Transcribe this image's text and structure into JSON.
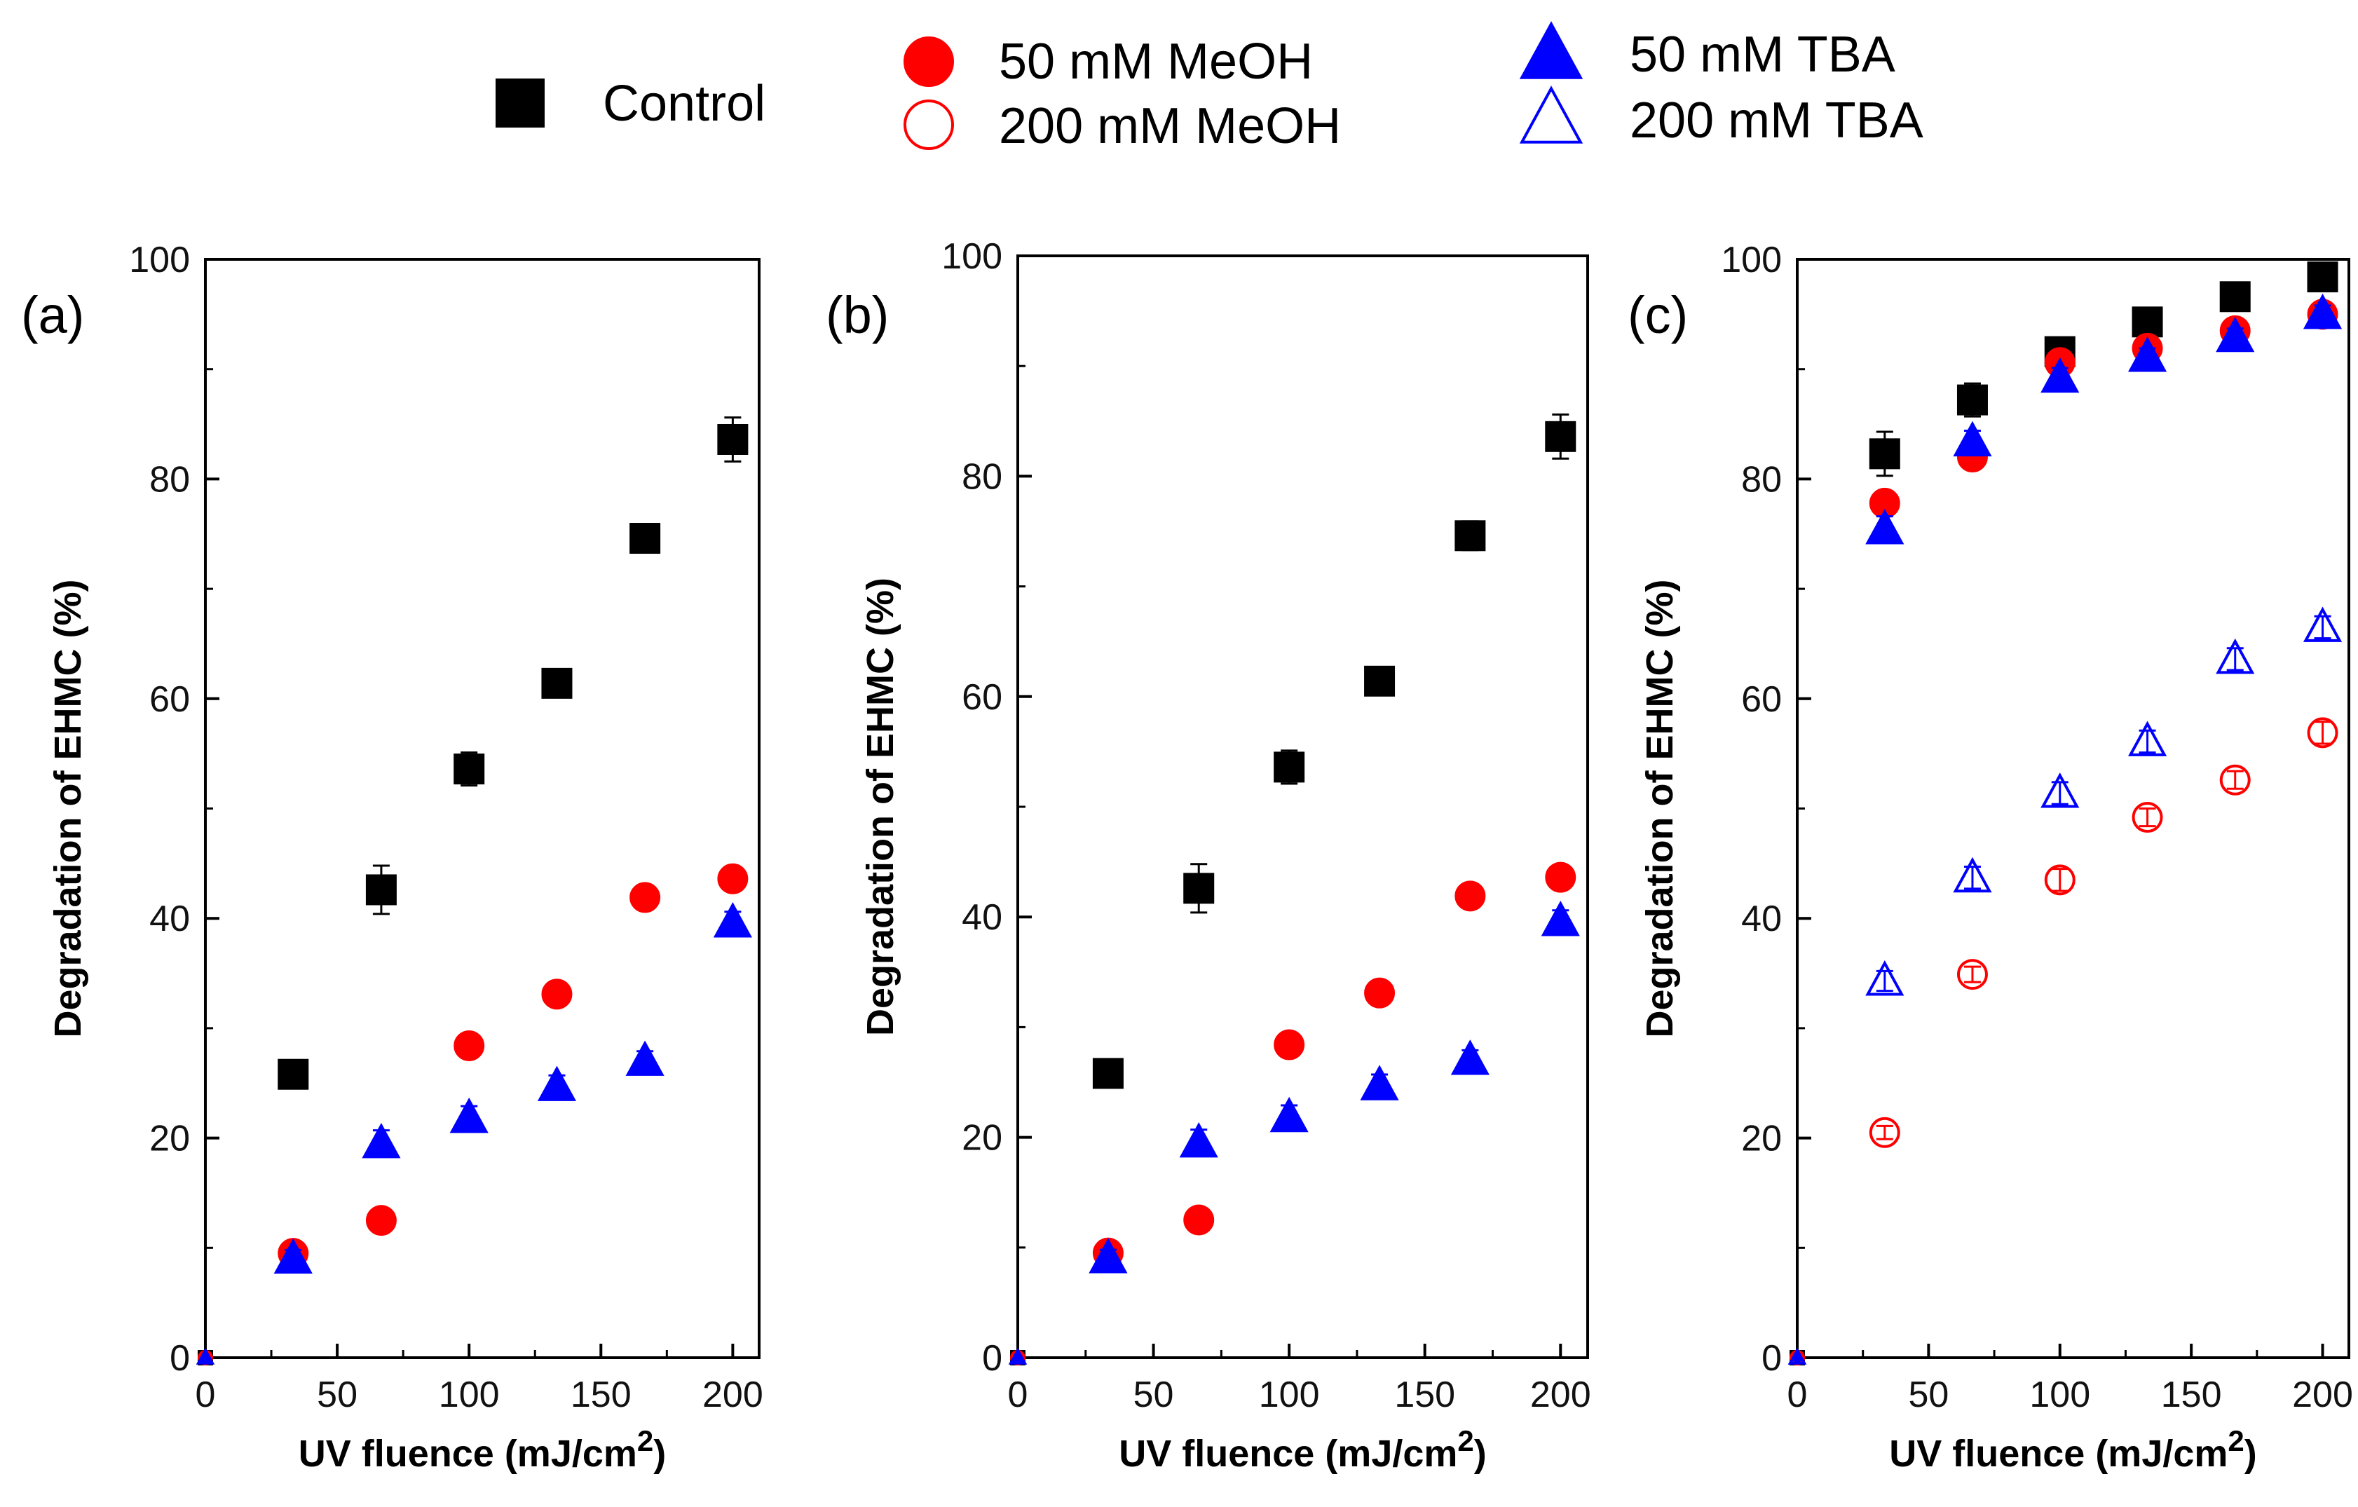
{
  "chart_data": [
    {
      "type": "scatter",
      "panel_label": "(a)",
      "xlabel": "UV fluence (mJ/cm",
      "xlabel_sup": "2",
      "xlabel_close": ")",
      "ylabel": "Degradation of EHMC (%)",
      "xlim": [
        0,
        210
      ],
      "ylim": [
        0,
        100
      ],
      "xticks": [
        0,
        50,
        100,
        150,
        200
      ],
      "yticks": [
        0,
        20,
        40,
        60,
        80,
        100
      ],
      "xtick_labels": [
        "0",
        "50",
        "100",
        "150",
        "200"
      ],
      "ytick_labels": [
        "0",
        "20",
        "40",
        "60",
        "80",
        "100"
      ],
      "series": [
        {
          "name": "Control",
          "marker": "square",
          "filled": true,
          "color": "#000000",
          "x": [
            0,
            33.3,
            66.7,
            100,
            133.3,
            166.7,
            200
          ],
          "y": [
            0,
            25.8,
            42.6,
            53.6,
            61.4,
            74.6,
            83.6
          ],
          "err": [
            0,
            1.2,
            2.2,
            1.5,
            1.1,
            1.3,
            2.0
          ]
        },
        {
          "name": "50 mM MeOH",
          "marker": "circle",
          "filled": true,
          "color": "#ff0000",
          "x": [
            0,
            33.3,
            66.7,
            100,
            133.3,
            166.7,
            200
          ],
          "y": [
            0,
            9.5,
            12.5,
            28.4,
            33.1,
            41.9,
            43.6
          ],
          "err": [
            0,
            0.5,
            0.5,
            0.6,
            0.6,
            0.6,
            0.6
          ]
        },
        {
          "name": "50 mM TBA",
          "marker": "triangle",
          "filled": true,
          "color": "#0000ff",
          "x": [
            0,
            33.3,
            66.7,
            100,
            133.3,
            166.7,
            200
          ],
          "y": [
            0,
            9.0,
            19.5,
            21.8,
            24.7,
            27.0,
            39.6
          ],
          "err": [
            0,
            0.8,
            1.2,
            1.1,
            1.0,
            0.9,
            1.0
          ]
        }
      ]
    },
    {
      "type": "scatter",
      "panel_label": "(b)",
      "xlabel": "UV fluence (mJ/cm",
      "xlabel_sup": "2",
      "xlabel_close": ")",
      "ylabel": "Degradation of EHMC (%)",
      "xlim": [
        0,
        210
      ],
      "ylim": [
        0,
        100
      ],
      "xticks": [
        0,
        50,
        100,
        150,
        200
      ],
      "yticks": [
        0,
        20,
        40,
        60,
        80,
        100
      ],
      "xtick_labels": [
        "0",
        "50",
        "100",
        "150",
        "200"
      ],
      "ytick_labels": [
        "0",
        "20",
        "40",
        "60",
        "80",
        "100"
      ],
      "series": [
        {
          "name": "Control",
          "marker": "square",
          "filled": true,
          "color": "#000000",
          "x": [
            0,
            33.3,
            66.7,
            100,
            133.3,
            166.7,
            200
          ],
          "y": [
            0,
            25.8,
            42.6,
            53.6,
            61.4,
            74.6,
            83.6
          ],
          "err": [
            0,
            1.2,
            2.2,
            1.5,
            1.1,
            1.3,
            2.0
          ]
        },
        {
          "name": "50 mM MeOH",
          "marker": "circle",
          "filled": true,
          "color": "#ff0000",
          "x": [
            0,
            33.3,
            66.7,
            100,
            133.3,
            166.7,
            200
          ],
          "y": [
            0,
            9.5,
            12.5,
            28.4,
            33.1,
            41.9,
            43.6
          ],
          "err": [
            0,
            0.5,
            0.5,
            0.6,
            0.6,
            0.6,
            0.6
          ]
        },
        {
          "name": "50 mM TBA",
          "marker": "triangle",
          "filled": true,
          "color": "#0000ff",
          "x": [
            0,
            33.3,
            66.7,
            100,
            133.3,
            166.7,
            200
          ],
          "y": [
            0,
            9.0,
            19.5,
            21.8,
            24.7,
            27.0,
            39.6
          ],
          "err": [
            0,
            0.8,
            1.2,
            1.1,
            1.0,
            0.9,
            1.0
          ]
        }
      ]
    },
    {
      "type": "scatter",
      "panel_label": "(c)",
      "xlabel": "UV fluence (mJ/cm",
      "xlabel_sup": "2",
      "xlabel_close": ")",
      "ylabel": "Degradation of EHMC (%)",
      "xlim": [
        0,
        210
      ],
      "ylim": [
        0,
        100
      ],
      "xticks": [
        0,
        50,
        100,
        150,
        200
      ],
      "yticks": [
        0,
        20,
        40,
        60,
        80,
        100
      ],
      "xtick_labels": [
        "0",
        "50",
        "100",
        "150",
        "200"
      ],
      "ytick_labels": [
        "0",
        "20",
        "40",
        "60",
        "80",
        "100"
      ],
      "series": [
        {
          "name": "Control",
          "marker": "square",
          "filled": true,
          "color": "#000000",
          "x": [
            0,
            33.3,
            66.7,
            100,
            133.3,
            166.7,
            200
          ],
          "y": [
            0,
            82.3,
            87.2,
            91.6,
            94.3,
            96.6,
            98.4
          ],
          "err": [
            0,
            2.0,
            1.5,
            0.8,
            0.6,
            0.5,
            0.4
          ]
        },
        {
          "name": "50 mM MeOH",
          "marker": "circle",
          "filled": true,
          "color": "#ff0000",
          "x": [
            0,
            33.3,
            66.7,
            100,
            133.3,
            166.7,
            200
          ],
          "y": [
            0,
            77.8,
            82.0,
            90.6,
            91.9,
            93.5,
            95.0
          ],
          "err": [
            0,
            0.6,
            0.6,
            0.6,
            0.6,
            0.6,
            0.6
          ]
        },
        {
          "name": "200 mM MeOH",
          "marker": "circle",
          "filled": false,
          "color": "#ff0000",
          "x": [
            0,
            33.3,
            66.7,
            100,
            133.3,
            166.7,
            200
          ],
          "y": [
            0,
            20.5,
            34.9,
            43.5,
            49.2,
            52.6,
            56.9
          ],
          "err": [
            0,
            0.6,
            0.7,
            1.0,
            0.8,
            0.8,
            1.0
          ]
        },
        {
          "name": "50 mM TBA",
          "marker": "triangle",
          "filled": true,
          "color": "#0000ff",
          "x": [
            0,
            33.3,
            66.7,
            100,
            133.3,
            166.7,
            200
          ],
          "y": [
            0,
            75.4,
            83.4,
            89.2,
            91.1,
            92.9,
            95.0
          ],
          "err": [
            0,
            1.2,
            1.0,
            0.9,
            0.8,
            0.8,
            0.8
          ]
        },
        {
          "name": "200 mM TBA",
          "marker": "triangle",
          "filled": false,
          "color": "#0000ff",
          "x": [
            0,
            33.3,
            66.7,
            100,
            133.3,
            166.7,
            200
          ],
          "y": [
            0,
            34.3,
            43.7,
            51.4,
            56.1,
            63.6,
            66.5
          ],
          "err": [
            0,
            0.9,
            1.0,
            1.0,
            1.0,
            1.0,
            1.0
          ]
        }
      ]
    }
  ],
  "legend": [
    {
      "label": "Control",
      "marker": "square",
      "filled": true,
      "color": "#000000"
    },
    {
      "label": "50 mM MeOH",
      "marker": "circle",
      "filled": true,
      "color": "#ff0000"
    },
    {
      "label": "200 mM MeOH",
      "marker": "circle",
      "filled": false,
      "color": "#ff0000"
    },
    {
      "label": "50 mM TBA",
      "marker": "triangle",
      "filled": true,
      "color": "#0000ff"
    },
    {
      "label": "200 mM TBA",
      "marker": "triangle",
      "filled": false,
      "color": "#0000ff"
    }
  ]
}
